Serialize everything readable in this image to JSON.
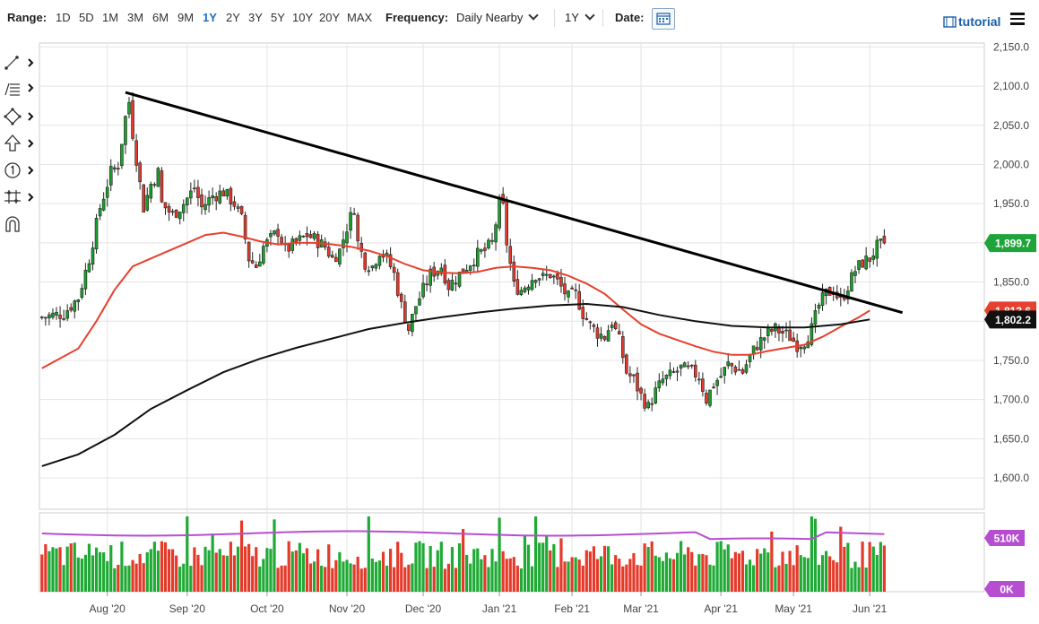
{
  "toolbar": {
    "range_label": "Range:",
    "ranges": [
      "1D",
      "5D",
      "1M",
      "3M",
      "6M",
      "9M",
      "1Y",
      "2Y",
      "3Y",
      "5Y",
      "10Y",
      "20Y",
      "MAX"
    ],
    "active_range": "1Y",
    "frequency_label": "Frequency:",
    "frequency_value": "Daily Nearby",
    "period_value": "1Y",
    "date_label": "Date:",
    "tutorial_label": "tutorial"
  },
  "left_tools": [
    "line-draw-icon",
    "fibonacci-icon",
    "shape-icon",
    "arrow-up-icon",
    "number-one-icon",
    "measure-icon",
    "magnet-icon"
  ],
  "chart_data": {
    "type": "candlestick",
    "x_ticks": [
      "Aug '20",
      "Sep '20",
      "Oct '20",
      "Nov '20",
      "Dec '20",
      "Jan '21",
      "Feb '21",
      "Mar '21",
      "Apr '21",
      "May '21",
      "Jun '21"
    ],
    "y_ticks": [
      "2,150.0",
      "2,100.0",
      "2,050.0",
      "2,000.0",
      "1,950.0",
      "1,900.0",
      "1,850.0",
      "1,800.0",
      "1,750.0",
      "1,700.0",
      "1,650.0",
      "1,600.0"
    ],
    "ylim": [
      1560,
      2155
    ],
    "last_price_label": "1,899.7",
    "last_price": 1899.7,
    "ma_red_label": "1,813.6",
    "ma_red": 1813.6,
    "ma_black_label": "1,802.2",
    "ma_black": 1802.2,
    "volume_labels": [
      "510K",
      "0K"
    ],
    "colors": {
      "up": "#1a9f2c",
      "down": "#e03a2c",
      "ma_short": "#e6402f",
      "ma_long": "#111111",
      "volume_ma": "#b64ed1",
      "trendline": "#000000",
      "label_green": "#1ea43a",
      "label_black": "#111111"
    },
    "close_path": [
      [
        0,
        1805
      ],
      [
        6,
        1810
      ],
      [
        10,
        1830
      ],
      [
        13,
        1880
      ],
      [
        16,
        1945
      ],
      [
        19,
        1990
      ],
      [
        21,
        2000
      ],
      [
        23,
        2060
      ],
      [
        24,
        2080
      ],
      [
        25,
        2040
      ],
      [
        27,
        1975
      ],
      [
        28,
        1945
      ],
      [
        30,
        1975
      ],
      [
        32,
        1990
      ],
      [
        33,
        1950
      ],
      [
        36,
        1935
      ],
      [
        39,
        1950
      ],
      [
        42,
        1970
      ],
      [
        44,
        1945
      ],
      [
        47,
        1960
      ],
      [
        50,
        1965
      ],
      [
        53,
        1950
      ],
      [
        55,
        1930
      ],
      [
        57,
        1880
      ],
      [
        59,
        1870
      ],
      [
        61,
        1895
      ],
      [
        63,
        1905
      ],
      [
        65,
        1915
      ],
      [
        67,
        1890
      ],
      [
        70,
        1900
      ],
      [
        73,
        1910
      ],
      [
        75,
        1905
      ],
      [
        78,
        1895
      ],
      [
        80,
        1880
      ],
      [
        82,
        1890
      ],
      [
        84,
        1920
      ],
      [
        86,
        1945
      ],
      [
        87,
        1900
      ],
      [
        89,
        1875
      ],
      [
        91,
        1870
      ],
      [
        93,
        1890
      ],
      [
        95,
        1880
      ],
      [
        97,
        1860
      ],
      [
        99,
        1820
      ],
      [
        101,
        1790
      ],
      [
        103,
        1820
      ],
      [
        105,
        1840
      ],
      [
        107,
        1860
      ],
      [
        110,
        1870
      ],
      [
        112,
        1845
      ],
      [
        115,
        1860
      ],
      [
        118,
        1875
      ],
      [
        120,
        1885
      ],
      [
        122,
        1890
      ],
      [
        124,
        1900
      ],
      [
        126,
        1950
      ],
      [
        127,
        1945
      ],
      [
        128,
        1900
      ],
      [
        130,
        1845
      ],
      [
        132,
        1840
      ],
      [
        134,
        1850
      ],
      [
        136,
        1860
      ],
      [
        138,
        1855
      ],
      [
        140,
        1860
      ],
      [
        142,
        1850
      ],
      [
        145,
        1830
      ],
      [
        147,
        1835
      ],
      [
        149,
        1810
      ],
      [
        151,
        1795
      ],
      [
        153,
        1785
      ],
      [
        155,
        1780
      ],
      [
        157,
        1800
      ],
      [
        159,
        1775
      ],
      [
        161,
        1735
      ],
      [
        163,
        1725
      ],
      [
        165,
        1705
      ],
      [
        167,
        1690
      ],
      [
        169,
        1710
      ],
      [
        171,
        1725
      ],
      [
        173,
        1730
      ],
      [
        176,
        1740
      ],
      [
        179,
        1735
      ],
      [
        181,
        1730
      ],
      [
        183,
        1700
      ],
      [
        185,
        1720
      ],
      [
        187,
        1730
      ],
      [
        189,
        1745
      ],
      [
        191,
        1740
      ],
      [
        193,
        1735
      ],
      [
        195,
        1755
      ],
      [
        197,
        1770
      ],
      [
        200,
        1785
      ],
      [
        202,
        1790
      ],
      [
        204,
        1785
      ],
      [
        206,
        1780
      ],
      [
        208,
        1770
      ],
      [
        210,
        1775
      ],
      [
        212,
        1790
      ],
      [
        214,
        1820
      ],
      [
        216,
        1835
      ],
      [
        218,
        1840
      ],
      [
        220,
        1825
      ],
      [
        222,
        1845
      ],
      [
        224,
        1865
      ],
      [
        226,
        1875
      ],
      [
        228,
        1880
      ],
      [
        230,
        1895
      ],
      [
        232,
        1898
      ]
    ],
    "ma_short_path": [
      [
        0,
        1740
      ],
      [
        10,
        1765
      ],
      [
        15,
        1800
      ],
      [
        20,
        1840
      ],
      [
        25,
        1870
      ],
      [
        30,
        1880
      ],
      [
        35,
        1890
      ],
      [
        40,
        1900
      ],
      [
        45,
        1910
      ],
      [
        50,
        1913
      ],
      [
        55,
        1908
      ],
      [
        60,
        1902
      ],
      [
        65,
        1898
      ],
      [
        70,
        1900
      ],
      [
        75,
        1900
      ],
      [
        80,
        1898
      ],
      [
        85,
        1895
      ],
      [
        90,
        1890
      ],
      [
        95,
        1883
      ],
      [
        100,
        1873
      ],
      [
        105,
        1865
      ],
      [
        110,
        1862
      ],
      [
        115,
        1861
      ],
      [
        120,
        1863
      ],
      [
        125,
        1868
      ],
      [
        130,
        1870
      ],
      [
        135,
        1868
      ],
      [
        140,
        1865
      ],
      [
        145,
        1858
      ],
      [
        150,
        1848
      ],
      [
        155,
        1835
      ],
      [
        160,
        1815
      ],
      [
        165,
        1796
      ],
      [
        170,
        1784
      ],
      [
        175,
        1776
      ],
      [
        180,
        1768
      ],
      [
        185,
        1761
      ],
      [
        190,
        1757
      ],
      [
        195,
        1757
      ],
      [
        200,
        1762
      ],
      [
        205,
        1766
      ],
      [
        210,
        1770
      ],
      [
        215,
        1780
      ],
      [
        220,
        1793
      ],
      [
        225,
        1805
      ],
      [
        228,
        1813.6
      ]
    ],
    "ma_long_path": [
      [
        0,
        1615
      ],
      [
        10,
        1630
      ],
      [
        20,
        1655
      ],
      [
        30,
        1688
      ],
      [
        40,
        1712
      ],
      [
        50,
        1735
      ],
      [
        60,
        1752
      ],
      [
        70,
        1766
      ],
      [
        80,
        1778
      ],
      [
        90,
        1790
      ],
      [
        100,
        1798
      ],
      [
        110,
        1805
      ],
      [
        120,
        1811
      ],
      [
        130,
        1816
      ],
      [
        140,
        1820
      ],
      [
        150,
        1822
      ],
      [
        160,
        1818
      ],
      [
        170,
        1808
      ],
      [
        180,
        1800
      ],
      [
        190,
        1794
      ],
      [
        200,
        1792
      ],
      [
        210,
        1792
      ],
      [
        220,
        1796
      ],
      [
        228,
        1802.2
      ]
    ],
    "trendline": [
      [
        23,
        2092
      ],
      [
        237,
        1811
      ]
    ],
    "bars_count": 233
  }
}
